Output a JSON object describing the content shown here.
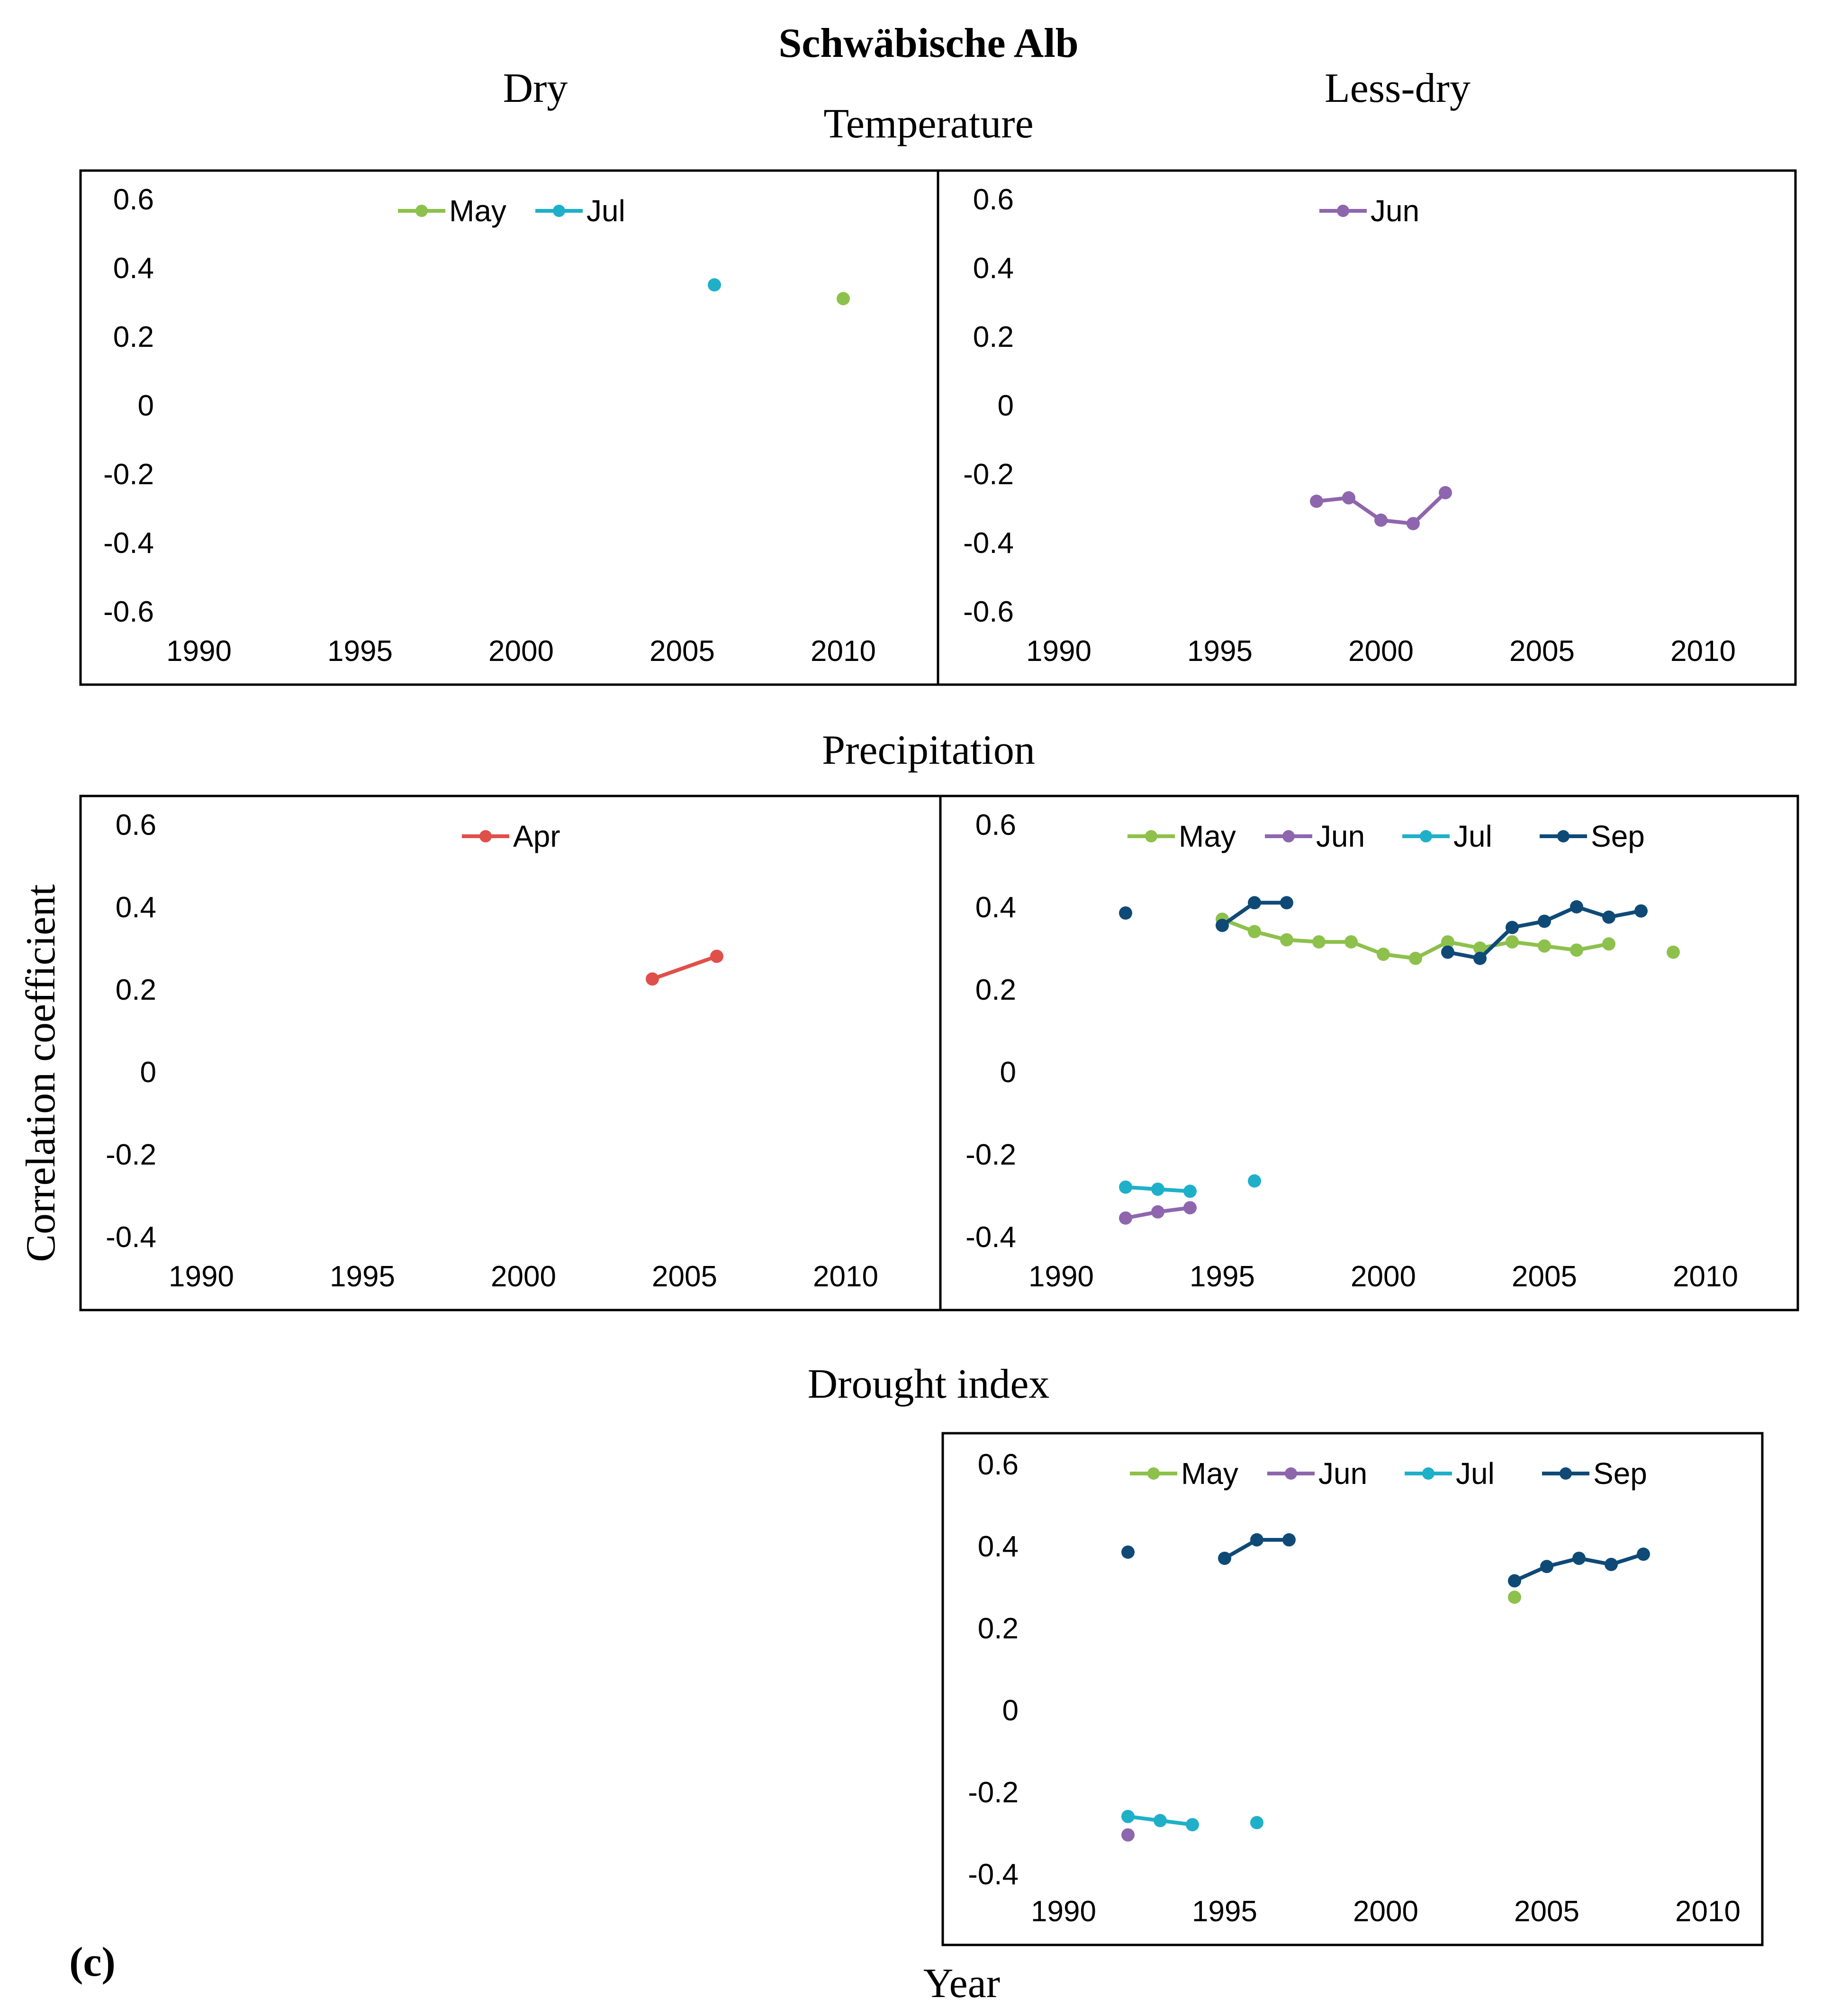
{
  "figure": {
    "title": "Schwäbische Alb",
    "columns": {
      "left": "Dry",
      "right": "Less-dry"
    },
    "rows": {
      "temperature": "Temperature",
      "precipitation": "Precipitation",
      "drought": "Drought index"
    },
    "ylabel": "Correlation coefficient",
    "xlabel": "Year",
    "panel_label": "(c)"
  },
  "colors": {
    "May": "#8dc14c",
    "Jun": "#8e66ad",
    "Jul": "#1fb0c9",
    "Sep": "#0f4a77",
    "Apr": "#e0504a"
  },
  "chart_data": [
    {
      "id": "temp-dry",
      "type": "line",
      "title": "Temperature",
      "column": "Dry",
      "xlim": [
        1990,
        2010
      ],
      "ylim": [
        -0.6,
        0.6
      ],
      "xticks": [
        1990,
        1995,
        2000,
        2005,
        2010
      ],
      "yticks": [
        "0.6",
        "0.4",
        "0.2",
        "0",
        "-0.2",
        "-0.4",
        "-0.6"
      ],
      "series": [
        {
          "name": "May",
          "points": [
            [
              2010,
              0.31
            ]
          ]
        },
        {
          "name": "Jul",
          "points": [
            [
              2006,
              0.35
            ]
          ]
        }
      ]
    },
    {
      "id": "temp-less",
      "type": "line",
      "title": "Temperature",
      "column": "Less-dry",
      "xlim": [
        1990,
        2010
      ],
      "ylim": [
        -0.6,
        0.6
      ],
      "xticks": [
        1990,
        1995,
        2000,
        2005,
        2010
      ],
      "yticks": [
        "0.6",
        "0.4",
        "0.2",
        "0",
        "-0.2",
        "-0.4",
        "-0.6"
      ],
      "series": [
        {
          "name": "Jun",
          "points": [
            [
              1998,
              -0.28
            ],
            [
              1999,
              -0.27
            ],
            [
              2000,
              -0.335
            ],
            [
              2001,
              -0.345
            ],
            [
              2002,
              -0.255
            ]
          ]
        }
      ]
    },
    {
      "id": "precip-dry",
      "type": "line",
      "title": "Precipitation",
      "column": "Dry",
      "xlim": [
        1990,
        2010
      ],
      "ylim": [
        -0.4,
        0.6
      ],
      "xticks": [
        1990,
        1995,
        2000,
        2005,
        2010
      ],
      "yticks": [
        "0.6",
        "0.4",
        "0.2",
        "0",
        "-0.2",
        "-0.4"
      ],
      "series": [
        {
          "name": "Apr",
          "points": [
            [
              2004,
              0.225
            ],
            [
              2006,
              0.28
            ]
          ]
        }
      ]
    },
    {
      "id": "precip-less",
      "type": "line",
      "title": "Precipitation",
      "column": "Less-dry",
      "xlim": [
        1990,
        2010
      ],
      "ylim": [
        -0.4,
        0.6
      ],
      "xticks": [
        1990,
        1995,
        2000,
        2005,
        2010
      ],
      "yticks": [
        "0.6",
        "0.4",
        "0.2",
        "0",
        "-0.2",
        "-0.4"
      ],
      "series": [
        {
          "name": "May",
          "points": [
            [
              1995,
              0.37
            ],
            [
              1996,
              0.34
            ],
            [
              1997,
              0.32
            ],
            [
              1998,
              0.315
            ],
            [
              1999,
              0.315
            ],
            [
              2000,
              0.285
            ],
            [
              2001,
              0.275
            ],
            [
              2002,
              0.315
            ],
            [
              2003,
              0.3
            ],
            [
              2004,
              0.315
            ],
            [
              2005,
              0.305
            ],
            [
              2006,
              0.295
            ],
            [
              2007,
              0.31
            ],
            null,
            [
              2009,
              0.29
            ]
          ]
        },
        {
          "name": "Jun",
          "points": [
            [
              1992,
              -0.355
            ],
            [
              1993,
              -0.34
            ],
            [
              1994,
              -0.33
            ]
          ]
        },
        {
          "name": "Jul",
          "points": [
            [
              1992,
              -0.28
            ],
            [
              1993,
              -0.285
            ],
            [
              1994,
              -0.29
            ],
            null,
            [
              1996,
              -0.265
            ]
          ]
        },
        {
          "name": "Sep",
          "points": [
            [
              1992,
              0.385
            ],
            null,
            [
              1995,
              0.355
            ],
            [
              1996,
              0.41
            ],
            [
              1997,
              0.41
            ],
            null,
            [
              2002,
              0.29
            ],
            [
              2003,
              0.275
            ],
            [
              2004,
              0.35
            ],
            [
              2005,
              0.365
            ],
            [
              2006,
              0.4
            ],
            [
              2007,
              0.375
            ],
            [
              2008,
              0.39
            ]
          ]
        }
      ]
    },
    {
      "id": "drought-less",
      "type": "line",
      "title": "Drought index",
      "column": "Less-dry",
      "xlim": [
        1990,
        2010
      ],
      "ylim": [
        -0.4,
        0.6
      ],
      "xticks": [
        1990,
        1995,
        2000,
        2005,
        2010
      ],
      "yticks": [
        "0.6",
        "0.4",
        "0.2",
        "0",
        "-0.2",
        "-0.4"
      ],
      "series": [
        {
          "name": "May",
          "points": [
            [
              2004,
              0.275
            ]
          ]
        },
        {
          "name": "Jun",
          "points": [
            [
              1992,
              -0.305
            ]
          ]
        },
        {
          "name": "Jul",
          "points": [
            [
              1992,
              -0.26
            ],
            [
              1993,
              -0.27
            ],
            [
              1994,
              -0.28
            ],
            null,
            [
              1996,
              -0.275
            ]
          ]
        },
        {
          "name": "Sep",
          "points": [
            [
              1992,
              0.385
            ],
            null,
            [
              1995,
              0.37
            ],
            [
              1996,
              0.415
            ],
            [
              1997,
              0.415
            ],
            null,
            [
              2004,
              0.315
            ],
            [
              2005,
              0.35
            ],
            [
              2006,
              0.37
            ],
            [
              2007,
              0.355
            ],
            [
              2008,
              0.38
            ]
          ]
        }
      ]
    }
  ]
}
